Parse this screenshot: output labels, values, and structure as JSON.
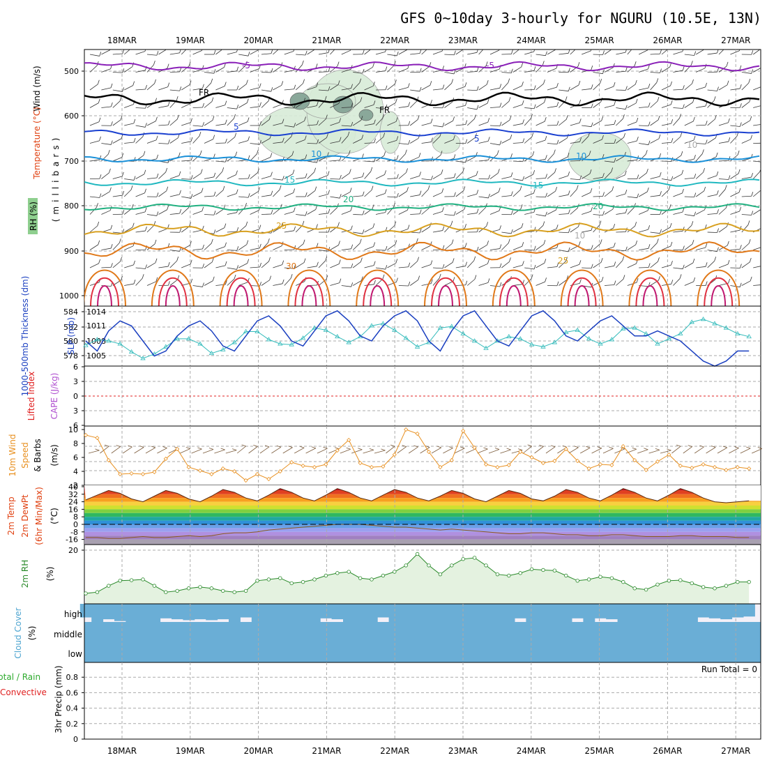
{
  "title": "GFS 0~10day 3-hourly for NGURU (10.5E, 13N)",
  "dates": [
    "18MAR",
    "19MAR",
    "20MAR",
    "21MAR",
    "22MAR",
    "23MAR",
    "24MAR",
    "25MAR",
    "26MAR",
    "27MAR"
  ],
  "colors": {
    "grid": "#aaaaaa",
    "slp": "#1a3fc0",
    "thickness": "#33bbbb",
    "wind_speed": "#e89020",
    "rh2m": "#2a8a2a",
    "cloud": "#6aaed6",
    "precip_total": "#2eaa2e",
    "precip_conv": "#e02020",
    "li": "#e02020",
    "cape": "#b050d0"
  },
  "panels": {
    "upper": {
      "ylabel_wind": "Wind (m/s)",
      "ylabel_temp": "Temperature (°C)",
      "ylabel_rh": "RH (%)",
      "ylabel_mb": "(millibars)",
      "levels": [
        "500",
        "600",
        "700",
        "800",
        "900",
        "1000"
      ],
      "contour_labels": [
        "-5",
        "-5",
        "FR",
        "FR",
        "5",
        "5",
        "10",
        "10",
        "15",
        "15",
        "20",
        "20",
        "25",
        "25",
        "30",
        "10",
        "10"
      ]
    },
    "slp": {
      "ylabel_thick": "1000-500mb Thickness (dm)",
      "ylabel_slp": "SLP (mb)",
      "ticks_left": [
        "584",
        "582",
        "580",
        "578"
      ],
      "ticks_right": [
        "1014",
        "1011",
        "1008",
        "1005"
      ]
    },
    "li": {
      "ylabel_li": "Lifted Index",
      "ylabel_cape": "CAPE (J/kg)",
      "ticks": [
        "6",
        "3",
        "0",
        "3",
        "6"
      ]
    },
    "wind10": {
      "ylabel_a": "10m Wind",
      "ylabel_b": "Speed",
      "ylabel_c": "& Barbs",
      "ylabel_unit": "(m/s)",
      "ticks": [
        "10",
        "8",
        "6",
        "4",
        "2"
      ]
    },
    "temp2m": {
      "ylabel_a": "2m Temp",
      "ylabel_b": "2m DewPt",
      "ylabel_c": "(6hr Min/Max)",
      "ylabel_unit": "(°C)",
      "ticks": [
        "40",
        "32",
        "24",
        "16",
        "8",
        "0",
        "-8",
        "-16"
      ]
    },
    "rh2m": {
      "ylabel": "2m RH",
      "ylabel_unit": "(%)",
      "ticks": [
        "20"
      ]
    },
    "cloud": {
      "ylabel": "Cloud Cover",
      "ylabel_unit": "(%)",
      "rows": [
        "high",
        "middle",
        "low"
      ]
    },
    "precip": {
      "ylabel_a": "Total / Rain",
      "ylabel_b": "Convective",
      "ylabel_c": "3hr Precip (mm)",
      "ticks": [
        "0.8",
        "0.6",
        "0.4",
        "0.2",
        "0"
      ],
      "run_total": "Run Total = 0"
    }
  },
  "chart_data": {
    "type": "line",
    "x_unit": "3-hourly steps from 17MAR 12Z",
    "slp_mb": [
      1008,
      1006,
      1010,
      1012,
      1011,
      1008,
      1005,
      1006,
      1009,
      1011,
      1012,
      1010,
      1007,
      1006,
      1009,
      1012,
      1013,
      1011,
      1008,
      1007,
      1010,
      1013,
      1014,
      1012,
      1009,
      1008,
      1011,
      1013,
      1014,
      1012,
      1008,
      1006,
      1010,
      1013,
      1014,
      1011,
      1008,
      1007,
      1010,
      1013,
      1014,
      1012,
      1009,
      1008,
      1010,
      1012,
      1013,
      1011,
      1009,
      1009,
      1010,
      1009,
      1008,
      1006,
      1004,
      1003,
      1004,
      1006,
      1006
    ],
    "thickness_dm": [
      579.4,
      580.2,
      580.0,
      579.6,
      578.5,
      577.6,
      578.2,
      579.2,
      580.3,
      580.3,
      579.6,
      578.3,
      578.8,
      579.8,
      581.3,
      581.3,
      580.2,
      579.6,
      579.5,
      580.4,
      581.8,
      581.5,
      580.6,
      579.8,
      580.6,
      582.1,
      582.4,
      581.5,
      580.4,
      579.2,
      579.8,
      581.8,
      582.0,
      581.0,
      580.0,
      579.0,
      580.0,
      580.6,
      580.3,
      579.5,
      579.2,
      579.8,
      581.2,
      581.5,
      580.3,
      579.6,
      580.2,
      581.7,
      581.8,
      581.0,
      579.6,
      580.3,
      581.0,
      582.6,
      583.0,
      582.4,
      581.8,
      581.0,
      580.6
    ],
    "wind10_ms": [
      9.2,
      8.8,
      5.6,
      3.6,
      3.7,
      3.6,
      3.9,
      5.8,
      7.2,
      4.6,
      4.1,
      3.6,
      4.4,
      4.0,
      2.7,
      3.6,
      2.9,
      4.0,
      5.3,
      4.8,
      4.6,
      5.0,
      7.0,
      8.5,
      5.2,
      4.6,
      4.7,
      6.4,
      10.0,
      9.4,
      6.8,
      4.6,
      5.6,
      9.8,
      7.4,
      5.0,
      4.6,
      4.9,
      6.8,
      6.0,
      5.2,
      5.5,
      7.2,
      5.5,
      4.4,
      5.0,
      4.9,
      7.6,
      5.6,
      4.2,
      5.4,
      6.4,
      4.8,
      4.5,
      5.0,
      4.6,
      4.2,
      4.6,
      4.4
    ],
    "rh2m_pct": [
      3,
      3.5,
      6,
      8,
      8.2,
      8.5,
      6,
      3.5,
      4,
      5,
      5.5,
      5,
      4,
      3.5,
      4,
      8,
      8.5,
      9,
      7,
      7.5,
      8.5,
      10,
      11,
      11.5,
      9,
      8.5,
      10,
      11.5,
      14,
      18.5,
      14,
      10.5,
      14,
      16.5,
      17,
      14,
      10.5,
      10,
      11,
      12.5,
      12.2,
      12,
      10,
      8,
      8.5,
      9.5,
      9,
      7.5,
      5,
      4.5,
      6.5,
      8,
      8.2,
      7,
      5.5,
      5,
      6,
      7.5,
      7.5
    ],
    "temp2m_c": [
      26,
      31,
      36,
      33,
      27,
      24,
      30,
      36,
      33,
      27,
      24,
      30,
      37,
      34,
      28,
      25,
      31,
      38,
      34,
      28,
      25,
      31,
      38,
      34,
      28,
      25,
      31,
      37,
      34,
      28,
      25,
      30,
      36,
      33,
      27,
      24,
      30,
      36,
      33,
      27,
      25,
      30,
      37,
      34,
      28,
      25,
      31,
      38,
      34,
      28,
      25,
      31,
      38,
      34,
      28,
      24,
      23,
      24,
      25
    ],
    "dewpt2m_c": [
      -14,
      -14,
      -15,
      -15,
      -14,
      -13,
      -14,
      -14,
      -13,
      -12,
      -13,
      -12,
      -10,
      -9,
      -9,
      -8,
      -6,
      -5,
      -4,
      -3,
      -2,
      -1,
      0,
      0,
      0,
      -1,
      -2,
      -3,
      -3,
      -4,
      -5,
      -6,
      -5,
      -6,
      -7,
      -8,
      -9,
      -10,
      -10,
      -9,
      -9,
      -10,
      -11,
      -11,
      -12,
      -12,
      -11,
      -11,
      -12,
      -13,
      -13,
      -13,
      -12,
      -12,
      -13,
      -13,
      -13,
      -14,
      -14
    ],
    "cloud_high_pct": [
      75,
      100,
      85,
      95,
      100,
      100,
      100,
      80,
      85,
      90,
      85,
      90,
      85,
      100,
      75,
      100,
      100,
      100,
      100,
      100,
      100,
      80,
      85,
      100,
      100,
      100,
      75,
      100,
      100,
      100,
      100,
      100,
      100,
      100,
      100,
      100,
      100,
      100,
      80,
      100,
      100,
      100,
      100,
      80,
      100,
      80,
      85,
      100,
      100,
      100,
      100,
      100,
      100,
      100,
      75,
      80,
      85,
      75,
      70
    ],
    "precip_mm": [],
    "cape_jkg": [],
    "lifted_index": []
  }
}
